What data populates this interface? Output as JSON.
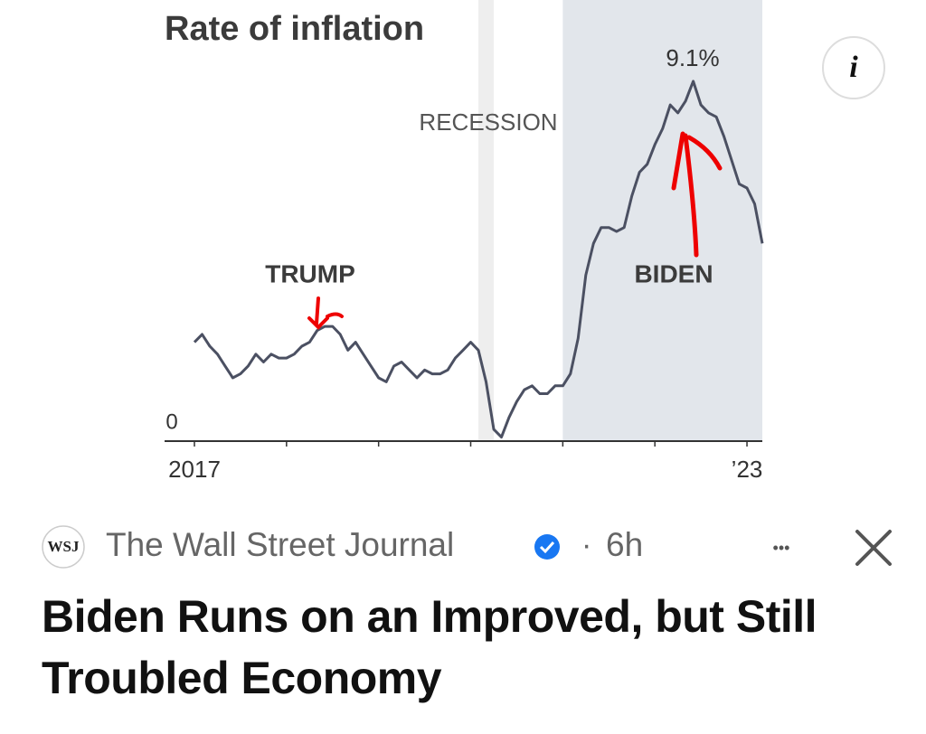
{
  "chart_data": {
    "type": "line",
    "title": "Rate of inflation",
    "x": [
      "2017-01",
      "2017-02",
      "2017-03",
      "2017-04",
      "2017-05",
      "2017-06",
      "2017-07",
      "2017-08",
      "2017-09",
      "2017-10",
      "2017-11",
      "2017-12",
      "2018-01",
      "2018-02",
      "2018-03",
      "2018-04",
      "2018-05",
      "2018-06",
      "2018-07",
      "2018-08",
      "2018-09",
      "2018-10",
      "2018-11",
      "2018-12",
      "2019-01",
      "2019-02",
      "2019-03",
      "2019-04",
      "2019-05",
      "2019-06",
      "2019-07",
      "2019-08",
      "2019-09",
      "2019-10",
      "2019-11",
      "2019-12",
      "2020-01",
      "2020-02",
      "2020-03",
      "2020-04",
      "2020-05",
      "2020-06",
      "2020-07",
      "2020-08",
      "2020-09",
      "2020-10",
      "2020-11",
      "2020-12",
      "2021-01",
      "2021-02",
      "2021-03",
      "2021-04",
      "2021-05",
      "2021-06",
      "2021-07",
      "2021-08",
      "2021-09",
      "2021-10",
      "2021-11",
      "2021-12",
      "2022-01",
      "2022-02",
      "2022-03",
      "2022-04",
      "2022-05",
      "2022-06",
      "2022-07",
      "2022-08",
      "2022-09",
      "2022-10",
      "2022-11",
      "2022-12",
      "2023-01",
      "2023-02",
      "2023-03"
    ],
    "values": [
      2.5,
      2.7,
      2.4,
      2.2,
      1.9,
      1.6,
      1.7,
      1.9,
      2.2,
      2.0,
      2.2,
      2.1,
      2.1,
      2.2,
      2.4,
      2.5,
      2.8,
      2.9,
      2.9,
      2.7,
      2.3,
      2.5,
      2.2,
      1.9,
      1.6,
      1.5,
      1.9,
      2.0,
      1.8,
      1.6,
      1.8,
      1.7,
      1.7,
      1.8,
      2.1,
      2.3,
      2.5,
      2.3,
      1.5,
      0.3,
      0.1,
      0.6,
      1.0,
      1.3,
      1.4,
      1.2,
      1.2,
      1.4,
      1.4,
      1.7,
      2.6,
      4.2,
      5.0,
      5.4,
      5.4,
      5.3,
      5.4,
      6.2,
      6.8,
      7.0,
      7.5,
      7.9,
      8.5,
      8.3,
      8.6,
      9.1,
      8.5,
      8.3,
      8.2,
      7.7,
      7.1,
      6.5,
      6.4,
      6.0,
      5.0
    ],
    "color": "#4b5062",
    "xlim": [
      "2017-01",
      "2023-03"
    ],
    "xticks": [
      {
        "value": "2017-01",
        "label": "2017"
      },
      {
        "value": "2018-01",
        "label": null
      },
      {
        "value": "2019-01",
        "label": null
      },
      {
        "value": "2020-01",
        "label": null
      },
      {
        "value": "2021-01",
        "label": null
      },
      {
        "value": "2022-01",
        "label": null
      },
      {
        "value": "2023-01",
        "label": "’23"
      }
    ],
    "ylim": [
      0,
      9.6
    ],
    "yticks": [
      0
    ],
    "shaded": [
      {
        "from": "2020-02",
        "to": "2020-04",
        "color": "#eeeeee"
      },
      {
        "from": "2021-01",
        "to": "2023-03",
        "color": "#e2e6eb"
      }
    ],
    "annotations": [
      "RECESSION",
      "TRUMP",
      "BIDEN",
      "9.1%"
    ]
  },
  "post": {
    "logo": "WSJ",
    "source": "The Wall Street Journal",
    "separator": "·",
    "time": "6h",
    "more": "•••",
    "headline": "Biden Runs on an Improved, but Still Troubled Economy"
  }
}
